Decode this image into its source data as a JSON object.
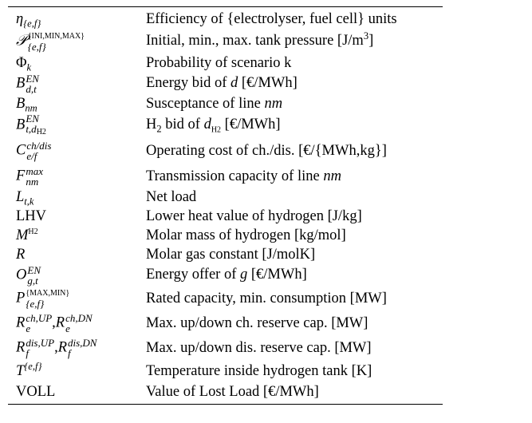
{
  "rows": [
    {
      "desc": "Efficiency of {electrolyser, fuel cell} units"
    },
    {
      "desc": "Initial, min., max. tank pressure [J/m",
      "desc_sup": "3",
      "desc_tail": "]"
    },
    {
      "desc": "Probability of scenario k"
    },
    {
      "desc_pre": "Energy bid of ",
      "desc_var": "d",
      "desc_post": " [€/MWh]"
    },
    {
      "desc_pre": "Susceptance of line ",
      "desc_var": "nm",
      "desc_post": ""
    },
    {
      "desc_pre": "H",
      "desc_sub": "2",
      "desc_mid": " bid of ",
      "desc_var": "d",
      "desc_var_sub": "H2",
      "desc_post": " [€/MWh]"
    },
    {
      "desc": "Operating cost of ch./dis. [€/{MWh,kg}]"
    },
    {
      "desc_pre": "Transmission capacity of line ",
      "desc_var": "nm",
      "desc_post": ""
    },
    {
      "desc": "Net load"
    },
    {
      "desc": "Lower heat value of hydrogen [J/kg]"
    },
    {
      "desc": "Molar mass of hydrogen [kg/mol]"
    },
    {
      "desc": "Molar gas constant [J/molK]"
    },
    {
      "desc_pre": "Energy offer of ",
      "desc_var": "g",
      "desc_post": " [€/MWh]"
    },
    {
      "desc": "Rated capacity, min. consumption [MW]"
    },
    {
      "desc": "Max. up/down ch. reserve cap. [MW]"
    },
    {
      "desc": "Max. up/down dis. reserve cap. [MW]"
    },
    {
      "desc": "Temperature inside hydrogen tank [K]"
    },
    {
      "desc": "Value of Lost Load [€/MWh]"
    }
  ],
  "symbols": {
    "eta": "η",
    "eta_sub": "{e,f}",
    "P_script": "𝒫",
    "P_sup": "{INI,MIN,MAX}",
    "P_sub": "{e,f}",
    "Phi": "Φ",
    "Phi_sub": "k",
    "B_EN": "B",
    "B_EN_sup": "EN",
    "B_EN_sub": "d,t",
    "Bnm": "B",
    "Bnm_sub": "nm",
    "BH2": "B",
    "BH2_sup": "EN",
    "BH2_sub": "t,d",
    "BH2_subsub": "H2",
    "C": "C",
    "C_sup": "ch/dis",
    "C_sub": "e/f",
    "F": "F",
    "F_sup": "max",
    "F_sub": "nm",
    "L": "L",
    "L_sub": "t,k",
    "LHV": "LHV",
    "M": "M",
    "M_sup": "H2",
    "R": "R",
    "O": "O",
    "O_sup": "EN",
    "O_sub": "g,t",
    "Pcap": "P",
    "Pcap_sup": "{MAX,MIN}",
    "Pcap_sub": "{e,f}",
    "Rch1": "R",
    "Rch1_sup": "ch,UP",
    "Rch1_sub": "e",
    "Rch2": "R",
    "Rch2_sup": "ch,DN",
    "Rch2_sub": "e",
    "Rdis1": "R",
    "Rdis1_sup": "dis,UP",
    "Rdis1_sub": "f",
    "Rdis2": "R",
    "Rdis2_sup": "dis,DN",
    "Rdis2_sub": "f",
    "T": "T",
    "T_sup": "{e,f}",
    "VOLL": "VOLL",
    "comma": ","
  }
}
